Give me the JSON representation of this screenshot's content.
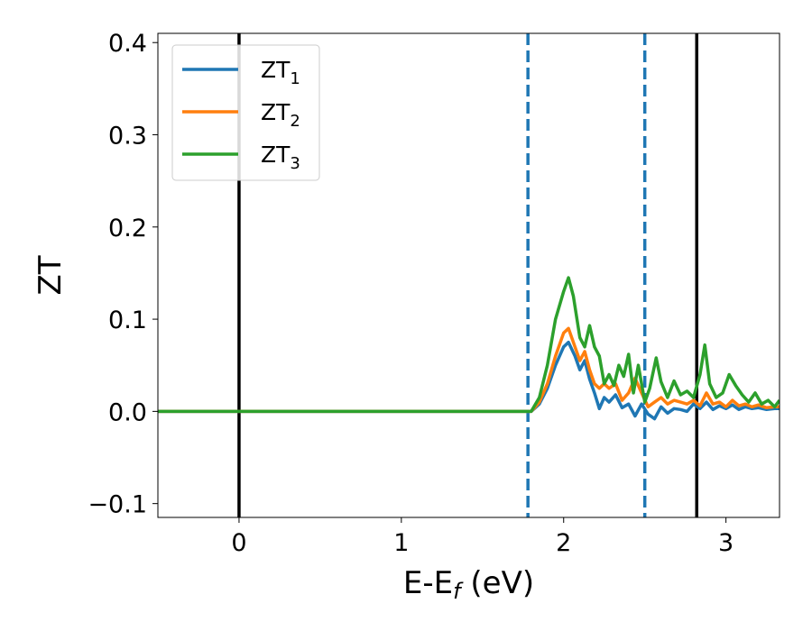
{
  "chart_data": {
    "type": "line",
    "xlabel": "E-E",
    "xlabel_sub": "f",
    "xlabel_unit": " (eV)",
    "ylabel": "ZT",
    "xlim": [
      -0.5,
      3.33
    ],
    "ylim": [
      -0.115,
      0.41
    ],
    "xticks": [
      0,
      1,
      2,
      3
    ],
    "xtick_labels": [
      "0",
      "1",
      "2",
      "3"
    ],
    "yticks": [
      -0.1,
      0.0,
      0.1,
      0.2,
      0.3,
      0.4
    ],
    "ytick_labels": [
      "−0.1",
      "0.0",
      "0.1",
      "0.2",
      "0.3",
      "0.4"
    ],
    "grid": false,
    "legend_position": "top-left",
    "vlines": [
      {
        "x": 0.0,
        "style": "solid",
        "color": "#000000"
      },
      {
        "x": 2.82,
        "style": "solid",
        "color": "#000000"
      },
      {
        "x": 1.78,
        "style": "dashed",
        "color": "#1f77b4"
      },
      {
        "x": 2.5,
        "style": "dashed",
        "color": "#1f77b4"
      }
    ],
    "series": [
      {
        "name": "ZT",
        "sub": "1",
        "color": "#1f77b4",
        "x": [
          -0.5,
          1.8,
          1.85,
          1.9,
          1.95,
          2.0,
          2.03,
          2.07,
          2.1,
          2.13,
          2.16,
          2.19,
          2.22,
          2.25,
          2.28,
          2.32,
          2.36,
          2.4,
          2.44,
          2.48,
          2.52,
          2.56,
          2.6,
          2.64,
          2.68,
          2.72,
          2.76,
          2.8,
          2.84,
          2.88,
          2.92,
          2.96,
          3.0,
          3.04,
          3.08,
          3.12,
          3.16,
          3.2,
          3.25,
          3.3,
          3.33
        ],
        "y": [
          0.0,
          0.0,
          0.008,
          0.025,
          0.05,
          0.07,
          0.075,
          0.06,
          0.045,
          0.055,
          0.035,
          0.02,
          0.003,
          0.015,
          0.01,
          0.018,
          0.004,
          0.008,
          -0.005,
          0.008,
          -0.003,
          -0.008,
          0.005,
          -0.002,
          0.003,
          0.002,
          0.0,
          0.008,
          0.003,
          0.01,
          0.002,
          0.006,
          0.003,
          0.007,
          0.002,
          0.005,
          0.003,
          0.004,
          0.002,
          0.003,
          0.003
        ]
      },
      {
        "name": "ZT",
        "sub": "2",
        "color": "#ff7f0e",
        "x": [
          -0.5,
          1.8,
          1.85,
          1.9,
          1.95,
          2.0,
          2.03,
          2.07,
          2.1,
          2.13,
          2.16,
          2.19,
          2.22,
          2.25,
          2.28,
          2.32,
          2.36,
          2.4,
          2.44,
          2.48,
          2.52,
          2.56,
          2.6,
          2.64,
          2.68,
          2.72,
          2.76,
          2.8,
          2.84,
          2.88,
          2.92,
          2.96,
          3.0,
          3.04,
          3.08,
          3.12,
          3.16,
          3.2,
          3.25,
          3.3,
          3.33
        ],
        "y": [
          0.0,
          0.0,
          0.01,
          0.03,
          0.06,
          0.085,
          0.09,
          0.07,
          0.055,
          0.065,
          0.045,
          0.03,
          0.025,
          0.03,
          0.025,
          0.03,
          0.012,
          0.02,
          0.036,
          0.02,
          0.005,
          0.01,
          0.015,
          0.008,
          0.012,
          0.01,
          0.008,
          0.012,
          0.006,
          0.02,
          0.008,
          0.01,
          0.005,
          0.012,
          0.006,
          0.008,
          0.005,
          0.007,
          0.004,
          0.005,
          0.005
        ]
      },
      {
        "name": "ZT",
        "sub": "3",
        "color": "#2ca02c",
        "x": [
          -0.5,
          1.8,
          1.85,
          1.9,
          1.95,
          2.0,
          2.03,
          2.06,
          2.1,
          2.13,
          2.16,
          2.19,
          2.22,
          2.25,
          2.28,
          2.31,
          2.34,
          2.37,
          2.4,
          2.43,
          2.46,
          2.5,
          2.53,
          2.57,
          2.6,
          2.64,
          2.68,
          2.72,
          2.76,
          2.8,
          2.84,
          2.87,
          2.9,
          2.94,
          2.98,
          3.02,
          3.06,
          3.1,
          3.14,
          3.18,
          3.22,
          3.26,
          3.3,
          3.33
        ],
        "y": [
          0.0,
          0.0,
          0.015,
          0.05,
          0.1,
          0.13,
          0.145,
          0.125,
          0.08,
          0.07,
          0.093,
          0.07,
          0.06,
          0.03,
          0.04,
          0.028,
          0.05,
          0.038,
          0.062,
          0.02,
          0.05,
          0.01,
          0.025,
          0.058,
          0.032,
          0.015,
          0.033,
          0.018,
          0.022,
          0.015,
          0.04,
          0.072,
          0.03,
          0.015,
          0.02,
          0.04,
          0.028,
          0.018,
          0.01,
          0.02,
          0.008,
          0.012,
          0.005,
          0.012
        ]
      }
    ]
  }
}
